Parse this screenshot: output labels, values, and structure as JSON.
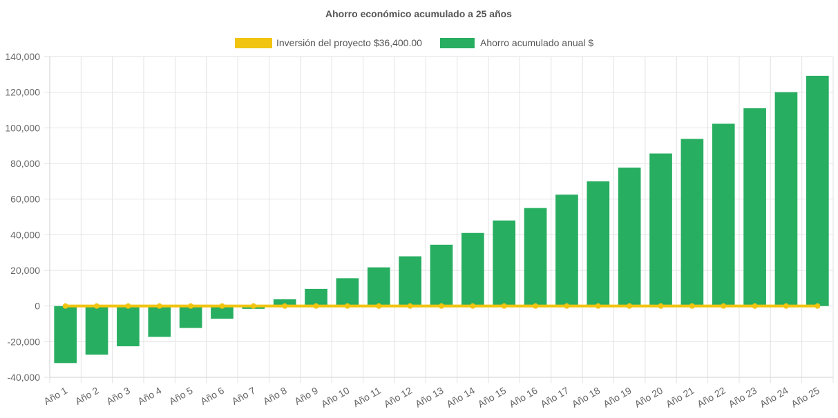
{
  "chart_data": {
    "type": "bar",
    "title": "Ahorro económico acumulado a 25 años",
    "xlabel": "",
    "ylabel": "",
    "ylim": [
      -40000,
      140000
    ],
    "yticks": [
      -40000,
      -20000,
      0,
      20000,
      40000,
      60000,
      80000,
      100000,
      120000,
      140000
    ],
    "ytick_labels": [
      "-40,000",
      "-20,000",
      "0",
      "20,000",
      "40,000",
      "60,000",
      "80,000",
      "100,000",
      "120,000",
      "140,000"
    ],
    "grid": true,
    "legend_position": "top-center",
    "categories": [
      "Año 1",
      "Año 2",
      "Año 3",
      "Año 4",
      "Año 5",
      "Año 6",
      "Año 7",
      "Año 8",
      "Año 9",
      "Año 10",
      "Año 11",
      "Año 12",
      "Año 13",
      "Año 14",
      "Año 15",
      "Año 16",
      "Año 17",
      "Año 18",
      "Año 19",
      "Año 20",
      "Año 21",
      "Año 22",
      "Año 23",
      "Año 24",
      "Año 25"
    ],
    "series": [
      {
        "name": "Inversión del proyecto $36,400.00",
        "type": "line",
        "color": "#f1c40f",
        "values": [
          0,
          0,
          0,
          0,
          0,
          0,
          0,
          0,
          0,
          0,
          0,
          0,
          0,
          0,
          0,
          0,
          0,
          0,
          0,
          0,
          0,
          0,
          0,
          0,
          0
        ]
      },
      {
        "name": "Ahorro acumulado anual $",
        "type": "bar",
        "color": "#27ae60",
        "values": [
          -32000,
          -27300,
          -22600,
          -17300,
          -12300,
          -7100,
          -1600,
          3800,
          9600,
          15600,
          21700,
          27900,
          34400,
          41000,
          48000,
          55000,
          62500,
          70000,
          77700,
          85600,
          93800,
          102300,
          111000,
          120000,
          129200
        ]
      }
    ]
  }
}
